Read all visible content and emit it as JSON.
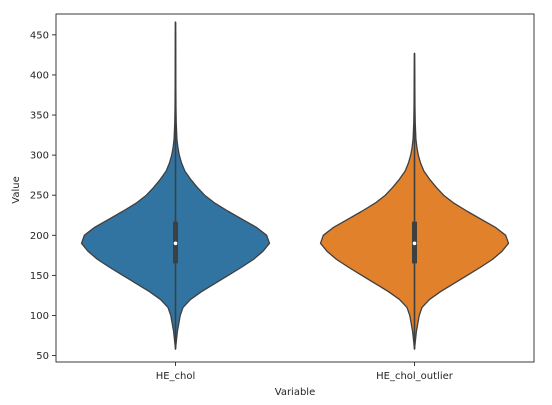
{
  "chart_data": {
    "type": "violin",
    "title": "",
    "xlabel": "Variable",
    "ylabel": "Value",
    "ylim": [
      42,
      476
    ],
    "yticks": [
      50,
      100,
      150,
      200,
      250,
      300,
      350,
      400,
      450
    ],
    "categories": [
      "HE_chol",
      "HE_chol_outlier"
    ],
    "grid": false,
    "legend": "none",
    "colors": [
      "#3274a1",
      "#e1812c"
    ],
    "series": [
      {
        "category": "HE_chol",
        "color": "#3274a1",
        "min": 58,
        "q1": 165,
        "median": 190,
        "q3": 217,
        "max": 466,
        "density": [
          [
            58,
            0.0
          ],
          [
            80,
            0.02
          ],
          [
            100,
            0.05
          ],
          [
            110,
            0.08
          ],
          [
            120,
            0.16
          ],
          [
            130,
            0.28
          ],
          [
            140,
            0.42
          ],
          [
            150,
            0.56
          ],
          [
            160,
            0.7
          ],
          [
            170,
            0.83
          ],
          [
            180,
            0.93
          ],
          [
            190,
            1.0
          ],
          [
            200,
            0.97
          ],
          [
            210,
            0.86
          ],
          [
            220,
            0.71
          ],
          [
            230,
            0.56
          ],
          [
            240,
            0.42
          ],
          [
            250,
            0.31
          ],
          [
            260,
            0.23
          ],
          [
            270,
            0.16
          ],
          [
            280,
            0.1
          ],
          [
            290,
            0.065
          ],
          [
            300,
            0.04
          ],
          [
            310,
            0.025
          ],
          [
            320,
            0.015
          ],
          [
            340,
            0.008
          ],
          [
            360,
            0.005
          ],
          [
            400,
            0.003
          ],
          [
            440,
            0.002
          ],
          [
            466,
            0.0
          ]
        ]
      },
      {
        "category": "HE_chol_outlier",
        "color": "#e1812c",
        "min": 58,
        "q1": 165,
        "median": 190,
        "q3": 217,
        "max": 427,
        "density": [
          [
            58,
            0.0
          ],
          [
            80,
            0.02
          ],
          [
            100,
            0.05
          ],
          [
            110,
            0.08
          ],
          [
            120,
            0.16
          ],
          [
            130,
            0.28
          ],
          [
            140,
            0.42
          ],
          [
            150,
            0.56
          ],
          [
            160,
            0.7
          ],
          [
            170,
            0.83
          ],
          [
            180,
            0.93
          ],
          [
            190,
            1.0
          ],
          [
            200,
            0.97
          ],
          [
            210,
            0.86
          ],
          [
            220,
            0.71
          ],
          [
            230,
            0.56
          ],
          [
            240,
            0.42
          ],
          [
            250,
            0.31
          ],
          [
            260,
            0.23
          ],
          [
            270,
            0.16
          ],
          [
            280,
            0.1
          ],
          [
            290,
            0.065
          ],
          [
            300,
            0.04
          ],
          [
            310,
            0.025
          ],
          [
            320,
            0.015
          ],
          [
            340,
            0.008
          ],
          [
            360,
            0.005
          ],
          [
            400,
            0.003
          ],
          [
            427,
            0.0
          ]
        ]
      }
    ]
  }
}
